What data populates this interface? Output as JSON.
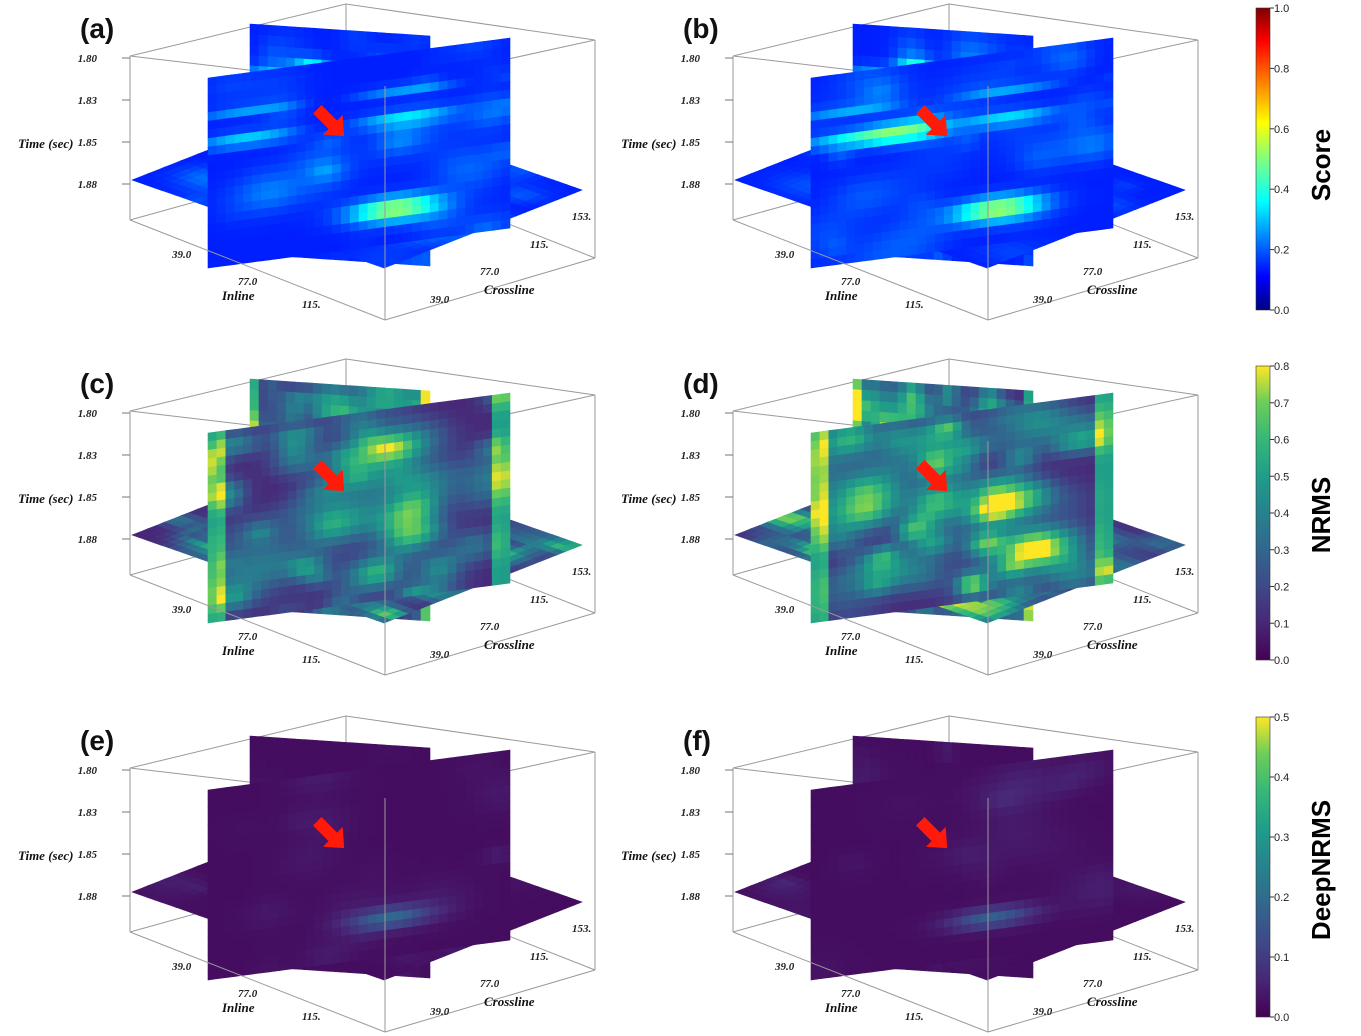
{
  "chart_data": {
    "type": "3d-slice-volume",
    "panels": [
      {
        "label": "(a)",
        "metric": "Score",
        "colormap": "jet",
        "pattern": "score_a"
      },
      {
        "label": "(b)",
        "metric": "Score",
        "colormap": "jet",
        "pattern": "score_b"
      },
      {
        "label": "(c)",
        "metric": "NRMS",
        "colormap": "viridis",
        "pattern": "nrms_c"
      },
      {
        "label": "(d)",
        "metric": "NRMS",
        "colormap": "viridis",
        "pattern": "nrms_d"
      },
      {
        "label": "(e)",
        "metric": "DeepNRMS",
        "colormap": "viridis",
        "pattern": "deep_e"
      },
      {
        "label": "(f)",
        "metric": "DeepNRMS",
        "colormap": "viridis",
        "pattern": "deep_f"
      }
    ],
    "axes": {
      "time": {
        "label": "Time (sec)",
        "ticks": [
          "1.80",
          "1.83",
          "1.85",
          "1.88"
        ]
      },
      "inline": {
        "label": "Inline",
        "ticks": [
          "39.0",
          "77.0",
          "115."
        ]
      },
      "crossline": {
        "label": "Crossline",
        "ticks": [
          "39.0",
          "77.0",
          "115.",
          "153."
        ]
      }
    },
    "annotation": "red arrow pointing to anomaly",
    "colorbars": [
      {
        "title": "Score",
        "colormap": "jet",
        "range": [
          0,
          1
        ],
        "ticks": [
          "0.0",
          "0.2",
          "0.4",
          "0.6",
          "0.8",
          "1.0"
        ]
      },
      {
        "title": "NRMS",
        "colormap": "viridis",
        "range": [
          0,
          0.8
        ],
        "ticks": [
          "0.0",
          "0.1",
          "0.2",
          "0.3",
          "0.4",
          "0.5",
          "0.6",
          "0.7",
          "0.8"
        ]
      },
      {
        "title": "DeepNRMS",
        "colormap": "viridis",
        "range": [
          0,
          0.5
        ],
        "ticks": [
          "0.0",
          "0.1",
          "0.2",
          "0.3",
          "0.4",
          "0.5"
        ]
      }
    ],
    "colors": {
      "arrow": "#ff1a0a",
      "box_edge": "#9a9a9a"
    }
  }
}
